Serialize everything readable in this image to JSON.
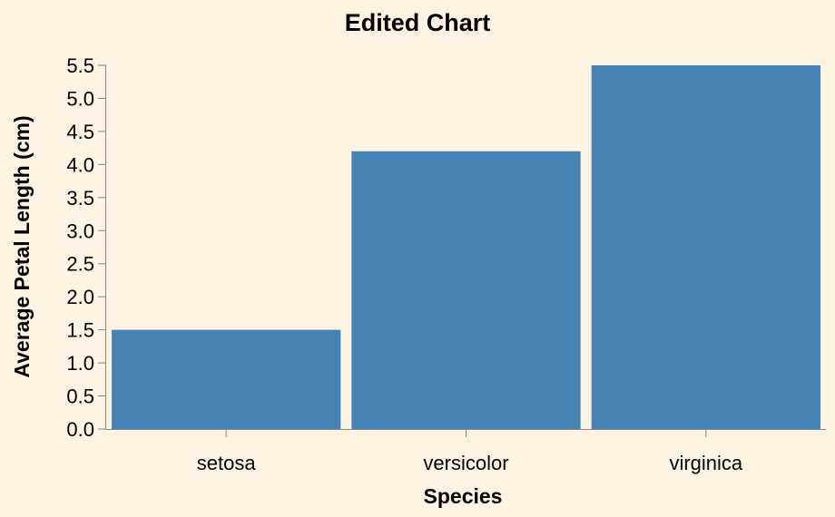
{
  "chart_data": {
    "type": "bar",
    "title": "Edited Chart",
    "xlabel": "Species",
    "ylabel": "Average Petal Length (cm)",
    "categories": [
      "setosa",
      "versicolor",
      "virginica"
    ],
    "values": [
      1.5,
      4.2,
      5.5
    ],
    "ylim": [
      0,
      5.5
    ],
    "yticks": [
      "0.0",
      "0.5",
      "1.0",
      "1.5",
      "2.0",
      "2.5",
      "3.0",
      "3.5",
      "4.0",
      "4.5",
      "5.0",
      "5.5"
    ],
    "grid": false,
    "legend": "none",
    "bar_color": "#4682b4",
    "background_color": "#fdf3e3"
  }
}
